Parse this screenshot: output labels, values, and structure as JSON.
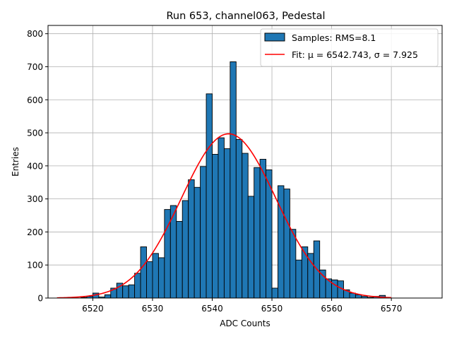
{
  "chart_data": {
    "type": "bar",
    "title": "Run 653, channel063, Pedestal",
    "xlabel": "ADC Counts",
    "ylabel": "Entries",
    "xlim": [
      6512.5,
      6578.5
    ],
    "ylim": [
      0,
      825
    ],
    "xticks": [
      6520,
      6530,
      6540,
      6550,
      6560,
      6570
    ],
    "yticks": [
      0,
      100,
      200,
      300,
      400,
      500,
      600,
      700,
      800
    ],
    "grid": true,
    "legend_position": "top-right",
    "colors": {
      "bars": "#1f77b4",
      "bar_edge": "#000000",
      "fit": "#ff0000",
      "grid": "#b0b0b0"
    },
    "bins": {
      "x_start": [
        6514,
        6515,
        6516,
        6517,
        6518,
        6519,
        6520,
        6521,
        6522,
        6523,
        6524,
        6525,
        6526,
        6527,
        6528,
        6529,
        6530,
        6531,
        6532,
        6533,
        6534,
        6535,
        6536,
        6537,
        6538,
        6539,
        6540,
        6541,
        6542,
        6543,
        6544,
        6545,
        6546,
        6547,
        6548,
        6549,
        6550,
        6551,
        6552,
        6553,
        6554,
        6555,
        6556,
        6557,
        6558,
        6559,
        6560,
        6561,
        6562,
        6563,
        6564,
        6565,
        6566,
        6567,
        6568,
        6569
      ],
      "counts": [
        0,
        0,
        0,
        0,
        2,
        5,
        15,
        3,
        10,
        30,
        45,
        37,
        40,
        75,
        155,
        110,
        135,
        122,
        268,
        280,
        232,
        295,
        358,
        335,
        398,
        618,
        435,
        485,
        452,
        715,
        480,
        438,
        308,
        395,
        420,
        388,
        30,
        340,
        330,
        208,
        115,
        155,
        135,
        173,
        85,
        58,
        55,
        52,
        25,
        15,
        10,
        5,
        2,
        5,
        8,
        0
      ]
    },
    "series": [
      {
        "name": "Samples: RMS=8.1",
        "kind": "histogram"
      },
      {
        "name": "Fit: μ = 6542.743, σ = 7.925",
        "kind": "line",
        "mu": 6542.743,
        "sigma": 7.925,
        "amplitude": 497,
        "x_range": [
          6514,
          6570
        ]
      }
    ]
  }
}
